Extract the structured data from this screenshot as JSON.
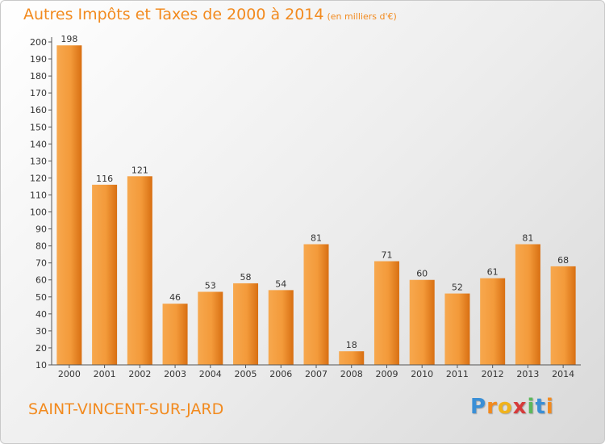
{
  "header": {
    "title": "Autres Impôts et Taxes de 2000 à 2014",
    "unit": "(en milliers d'€)"
  },
  "footer": {
    "commune": "SAINT-VINCENT-SUR-JARD",
    "logo_letters": [
      "P",
      "r",
      "o",
      "x",
      "i",
      "t",
      "i"
    ],
    "logo_colors": [
      "#3a8fd6",
      "#f28a1e",
      "#f0b31c",
      "#d63a3a",
      "#5cb85c",
      "#3a8fd6",
      "#f28a1e"
    ]
  },
  "colors": {
    "accent": "#f28a1e",
    "bar_light": "#f7a84e",
    "bar_dark": "#d86f12",
    "axis": "#555555"
  },
  "chart_data": {
    "type": "bar",
    "categories": [
      "2000",
      "2001",
      "2002",
      "2003",
      "2004",
      "2005",
      "2006",
      "2007",
      "2008",
      "2009",
      "2010",
      "2011",
      "2012",
      "2013",
      "2014"
    ],
    "values": [
      198,
      116,
      121,
      46,
      53,
      58,
      54,
      81,
      18,
      71,
      60,
      52,
      61,
      81,
      68
    ],
    "ylim": [
      10,
      200
    ],
    "yticks": [
      10,
      20,
      30,
      40,
      50,
      60,
      70,
      80,
      90,
      100,
      110,
      120,
      130,
      140,
      150,
      160,
      170,
      180,
      190,
      200
    ],
    "grid": false,
    "data_labels": true
  }
}
